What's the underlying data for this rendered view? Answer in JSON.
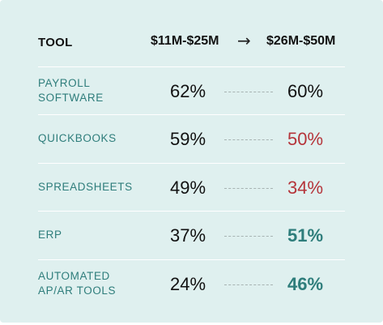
{
  "chart_data": {
    "type": "table",
    "header": {
      "tool": "TOOL",
      "col1": "$11M-$25M",
      "arrow": "→",
      "col2": "$26M-$50M"
    },
    "rows": [
      {
        "tool": "PAYROLL\nSOFTWARE",
        "v1": "62%",
        "v2": "60%",
        "v2_color": "#111111",
        "v2_bold": false
      },
      {
        "tool": "QUICKBOOKS",
        "v1": "59%",
        "v2": "50%",
        "v2_color": "#b5343a",
        "v2_bold": false
      },
      {
        "tool": "SPREADSHEETS",
        "v1": "49%",
        "v2": "34%",
        "v2_color": "#b5343a",
        "v2_bold": false
      },
      {
        "tool": "ERP",
        "v1": "37%",
        "v2": "51%",
        "v2_color": "#2e7d7b",
        "v2_bold": true
      },
      {
        "tool": "AUTOMATED\nAP/AR TOOLS",
        "v1": "24%",
        "v2": "46%",
        "v2_color": "#2e7d7b",
        "v2_bold": true
      }
    ]
  },
  "colors": {
    "background": "#dff0ef",
    "tool_label": "#2e7d7b",
    "decrease": "#b5343a",
    "increase": "#2e7d7b"
  }
}
